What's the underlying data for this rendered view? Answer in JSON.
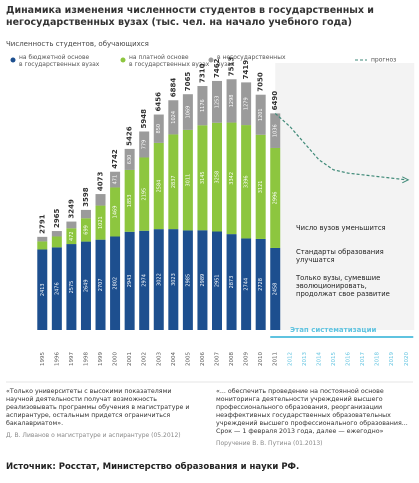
{
  "chart_data": {
    "type": "bar",
    "title": "Динамика изменения численности студентов в государственных и негосударственных вузах (тыс. чел. на начало учебного года)",
    "subtitle": "Численность студентов, обучающихся",
    "categories": [
      "1995",
      "1996",
      "1997",
      "1998",
      "1999",
      "2000",
      "2001",
      "2002",
      "2003",
      "2004",
      "2005",
      "2006",
      "2007",
      "2008",
      "2009",
      "2010",
      "2011",
      "2012",
      "2013",
      "2014",
      "2015",
      "2016",
      "2017",
      "2018",
      "2019",
      "2020"
    ],
    "ylim": [
      0,
      8000
    ],
    "series": [
      {
        "name": "на бюджетной основе в государственных вузах",
        "color": "#1d4f8f",
        "values": [
          2413,
          2476,
          2575,
          2649,
          2707,
          2802,
          2943,
          2974,
          3022,
          3023,
          2985,
          2989,
          2951,
          2873,
          2744,
          2728,
          2458,
          null,
          null,
          null,
          null,
          null,
          null,
          null,
          null,
          null
        ]
      },
      {
        "name": "на платной основе в государственных вузах",
        "color": "#8dc63f",
        "values": [
          242,
          326,
          472,
          699,
          1021,
          1469,
          1853,
          2195,
          2584,
          2837,
          3011,
          3145,
          3258,
          3342,
          3396,
          3121,
          2996,
          null,
          null,
          null,
          null,
          null,
          null,
          null,
          null,
          null
        ]
      },
      {
        "name": "в негосударственных вузах",
        "color": "#9b9b9b",
        "values": [
          136,
          163,
          202,
          250,
          345,
          471,
          630,
          779,
          850,
          1024,
          1069,
          1176,
          1253,
          1298,
          1279,
          1201,
          1036,
          null,
          null,
          null,
          null,
          null,
          null,
          null,
          null,
          null
        ]
      },
      {
        "name": "прогноз",
        "color": "#3f8a78",
        "type": "line",
        "values": [
          null,
          null,
          null,
          null,
          null,
          null,
          null,
          null,
          null,
          null,
          null,
          null,
          null,
          null,
          null,
          null,
          6490,
          6100,
          5600,
          5100,
          4800,
          4700,
          4650,
          4600,
          4550,
          4500
        ]
      }
    ],
    "totals": [
      2791,
      2965,
      3249,
      3598,
      4073,
      4742,
      5426,
      5948,
      6456,
      6884,
      7065,
      7310,
      7462,
      7513,
      7419,
      7050,
      6490,
      null,
      null,
      null,
      null,
      null,
      null,
      null,
      null,
      null
    ],
    "annotations": [
      "Число вузов уменьшится",
      "Стандарты образования улучшатся",
      "Только вузы, сумевшие эволюционировать, продолжат свое развитие"
    ],
    "stage_label": "Этап систематизации"
  },
  "quotes": [
    {
      "text": "«Только университеты с высокими показателями научной деятельности получат возможность реализовывать программы обучения в магистратуре и аспирантуре, остальным придется ограничиться бакалавриатом».",
      "author": "Д. В. Ливанов о магистратуре и аспирантуре (05.2012)"
    },
    {
      "text": "«... обеспечить проведение на постоянной основе мониторинга деятельности учреждений высшего профессионального образования, реорганизации неэффективных государственных образовательных учреждений высшего профессионального образования... Срок — 1 февраля 2013 года, далее — ежегодно»",
      "author": "Поручение В. В. Путина (01.2013)"
    }
  ],
  "source": "Источник: Росстат, Министерство образования и науки РФ."
}
